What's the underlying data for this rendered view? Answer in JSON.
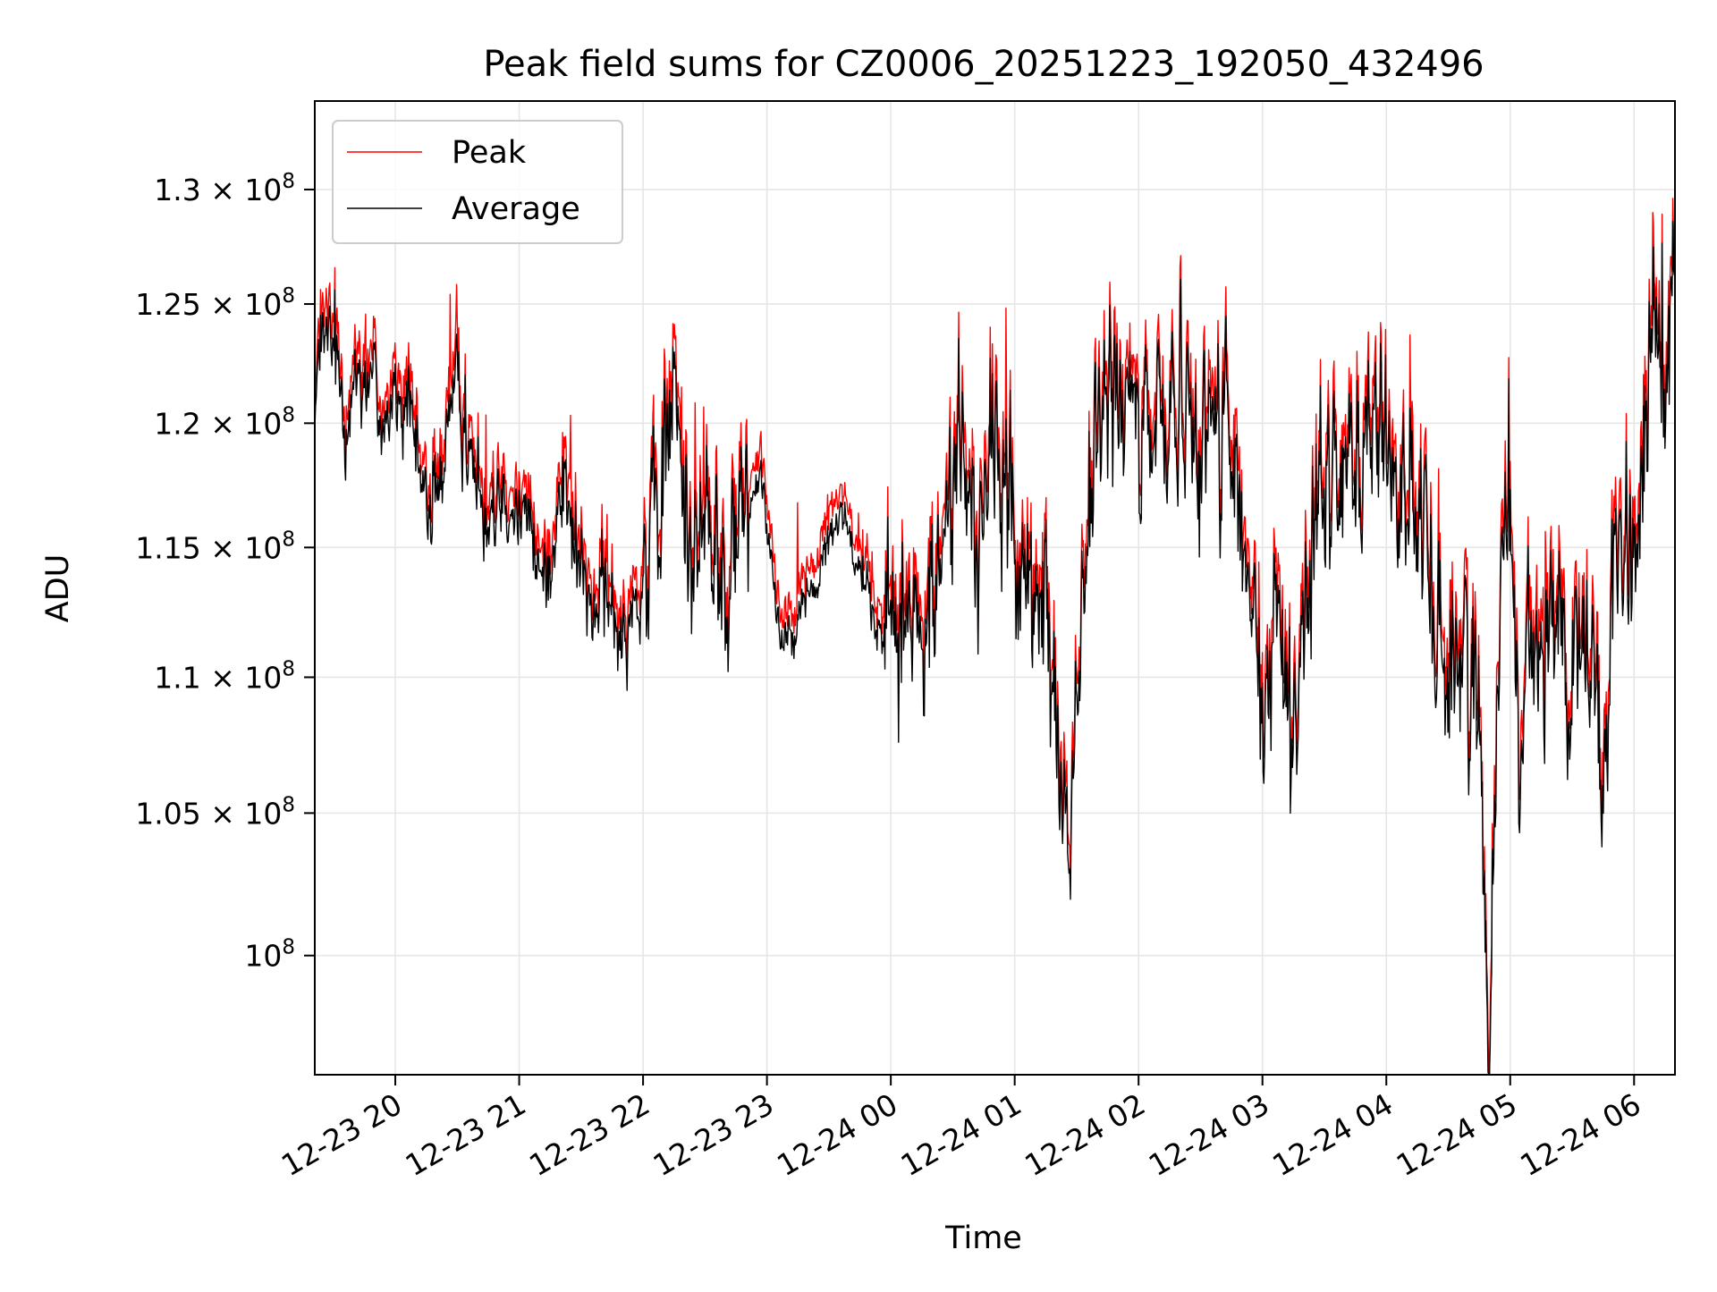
{
  "chart_data": {
    "type": "line",
    "title": "Peak field sums for CZ0006_20251223_192050_432496",
    "xlabel": "Time",
    "ylabel": "ADU",
    "yscale": "log",
    "xlim": [
      19.35,
      30.33
    ],
    "ylim": [
      96000000,
      134000000
    ],
    "grid": true,
    "legend_position": "top-left",
    "x_ticks": [
      {
        "value": 20,
        "label": "12-23 20"
      },
      {
        "value": 21,
        "label": "12-23 21"
      },
      {
        "value": 22,
        "label": "12-23 22"
      },
      {
        "value": 23,
        "label": "12-23 23"
      },
      {
        "value": 24,
        "label": "12-24 00"
      },
      {
        "value": 25,
        "label": "12-24 01"
      },
      {
        "value": 26,
        "label": "12-24 02"
      },
      {
        "value": 27,
        "label": "12-24 03"
      },
      {
        "value": 28,
        "label": "12-24 04"
      },
      {
        "value": 29,
        "label": "12-24 05"
      },
      {
        "value": 30,
        "label": "12-24 06"
      }
    ],
    "y_ticks": [
      {
        "value": 100000000,
        "mantissa": "",
        "exponent": "8"
      },
      {
        "value": 105000000,
        "mantissa": "1.05",
        "exponent": "8"
      },
      {
        "value": 110000000,
        "mantissa": "1.1",
        "exponent": "8"
      },
      {
        "value": 115000000,
        "mantissa": "1.15",
        "exponent": "8"
      },
      {
        "value": 120000000,
        "mantissa": "1.2",
        "exponent": "8"
      },
      {
        "value": 125000000,
        "mantissa": "1.25",
        "exponent": "8"
      },
      {
        "value": 130000000,
        "mantissa": "1.3",
        "exponent": "8"
      }
    ],
    "times_x_symbol": "×",
    "base_label": "10",
    "series": [
      {
        "name": "Peak",
        "color": "#ff0000"
      },
      {
        "name": "Average",
        "color": "#000000"
      }
    ],
    "keypoints_x": [
      19.35,
      19.45,
      19.6,
      19.75,
      19.9,
      20.05,
      20.2,
      20.35,
      20.45,
      20.6,
      20.75,
      20.9,
      21.05,
      21.2,
      21.35,
      21.5,
      21.65,
      21.8,
      21.95,
      22.1,
      22.25,
      22.35,
      22.5,
      22.65,
      22.8,
      22.95,
      23.1,
      23.25,
      23.4,
      23.5,
      23.6,
      23.75,
      23.9,
      24.05,
      24.25,
      24.4,
      24.55,
      24.7,
      24.85,
      25.0,
      25.12,
      25.25,
      25.33,
      25.38,
      25.45,
      25.55,
      25.7,
      25.85,
      26.0,
      26.15,
      26.3,
      26.5,
      26.7,
      26.85,
      26.95,
      27.0,
      27.1,
      27.25,
      27.4,
      27.55,
      27.7,
      27.85,
      28.0,
      28.15,
      28.3,
      28.45,
      28.6,
      28.7,
      28.78,
      28.83,
      28.9,
      29.0,
      29.07,
      29.12,
      29.2,
      29.35,
      29.5,
      29.6,
      29.75,
      29.85,
      29.95,
      30.05,
      30.15,
      30.25,
      30.3,
      30.33
    ],
    "average_values": [
      121500000,
      123500000,
      121000000,
      122500000,
      120500000,
      121000000,
      117500000,
      116500000,
      122000000,
      118500000,
      117000000,
      118000000,
      116000000,
      113500000,
      117500000,
      113500000,
      113000000,
      112000000,
      113000000,
      115000000,
      122000000,
      116000000,
      115500000,
      114000000,
      115500000,
      118500000,
      111500000,
      112500000,
      113500000,
      115500000,
      116500000,
      114500000,
      111500000,
      113000000,
      111000000,
      114500000,
      119500000,
      115500000,
      119000000,
      115500000,
      112500000,
      112000000,
      109000000,
      108000000,
      102500000,
      114000000,
      120000000,
      121000000,
      118500000,
      120000000,
      121500000,
      120000000,
      120500000,
      113500000,
      111000000,
      106500000,
      113000000,
      108500000,
      115500000,
      117500000,
      118000000,
      120500000,
      119500000,
      117500000,
      115000000,
      111500000,
      109500000,
      112000000,
      103500000,
      97500000,
      112000000,
      119000000,
      106000000,
      110500000,
      111500000,
      112000000,
      111000000,
      113000000,
      106500000,
      113500000,
      112500000,
      116500000,
      123500000,
      121000000,
      125500000,
      128500000
    ],
    "peak_values": [
      122200000,
      124300000,
      121700000,
      123300000,
      121200000,
      121800000,
      118200000,
      117200000,
      122800000,
      119200000,
      117700000,
      118800000,
      116700000,
      114200000,
      118300000,
      114200000,
      113700000,
      112700000,
      113700000,
      115800000,
      122800000,
      116800000,
      116200000,
      114800000,
      116300000,
      119300000,
      112200000,
      113200000,
      114200000,
      116300000,
      117200000,
      115200000,
      112200000,
      113800000,
      111800000,
      115300000,
      120300000,
      116300000,
      119800000,
      116200000,
      113200000,
      112800000,
      109700000,
      108700000,
      103200000,
      114800000,
      120800000,
      121800000,
      119300000,
      120800000,
      122300000,
      120800000,
      121300000,
      114300000,
      111800000,
      107200000,
      113800000,
      109300000,
      116300000,
      118300000,
      118800000,
      121300000,
      120300000,
      118300000,
      115800000,
      112300000,
      110300000,
      112800000,
      104200000,
      98300000,
      112800000,
      119800000,
      106800000,
      111300000,
      112300000,
      112800000,
      111800000,
      113800000,
      107300000,
      114300000,
      113300000,
      117300000,
      124300000,
      121800000,
      126300000,
      129300000
    ]
  }
}
